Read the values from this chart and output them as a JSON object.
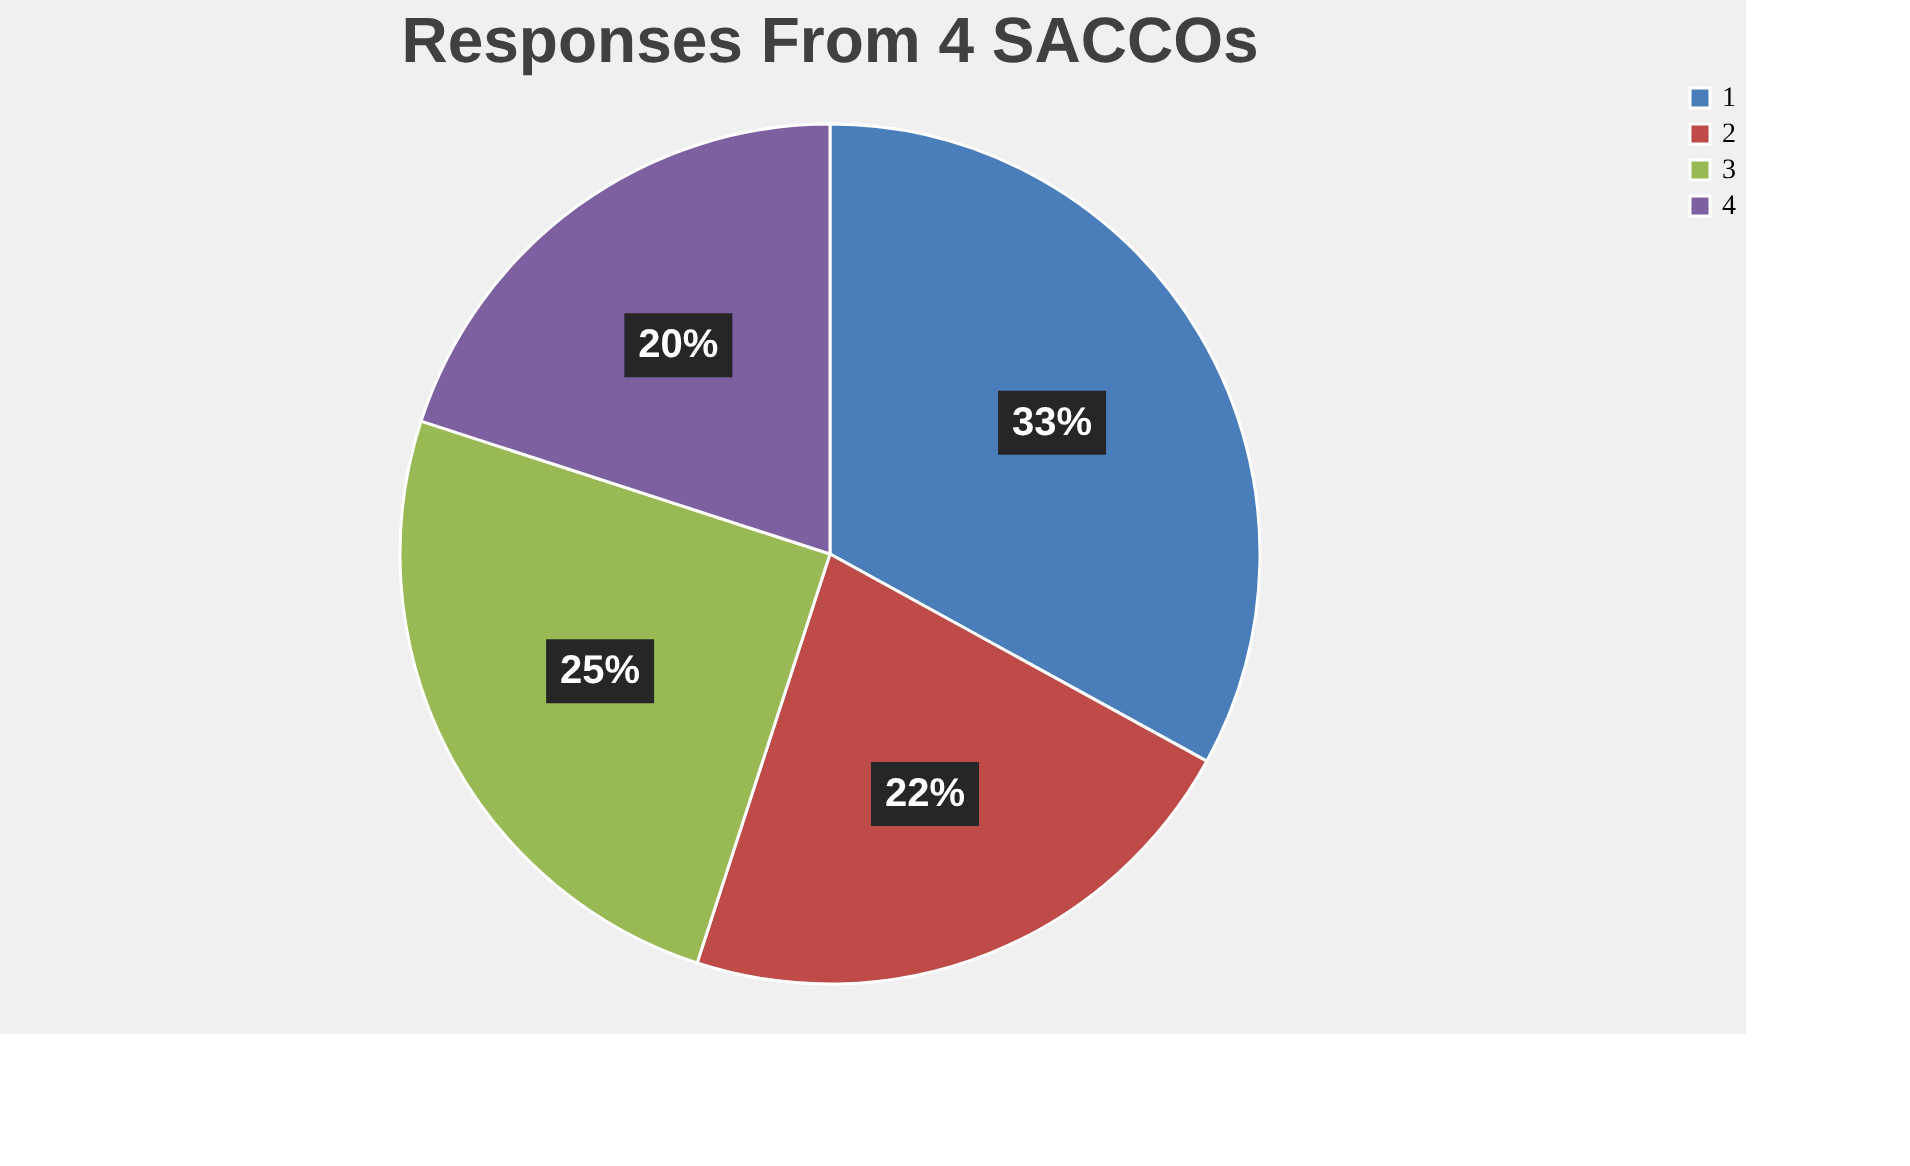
{
  "chart_data": {
    "type": "pie",
    "title": "Responses From 4 SACCOs",
    "categories": [
      "1",
      "2",
      "3",
      "4"
    ],
    "values": [
      33,
      22,
      25,
      20
    ],
    "colors": [
      "#4a7ebb",
      "#be4b48",
      "#98b954",
      "#7d60a0"
    ],
    "value_labels": [
      "33%",
      "22%",
      "25%",
      "20%"
    ],
    "legend": "right"
  }
}
